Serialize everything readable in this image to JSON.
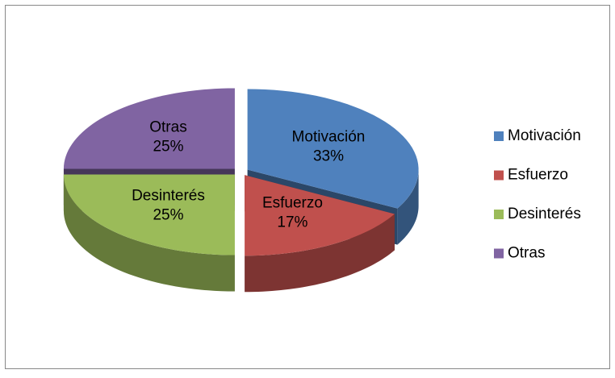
{
  "chart_data": {
    "type": "pie",
    "categories": [
      "Motivación",
      "Esfuerzo",
      "Desinterés",
      "Otras"
    ],
    "values": [
      33,
      17,
      25,
      25
    ],
    "value_labels": [
      "33%",
      "17%",
      "25%",
      "25%"
    ],
    "colors": [
      "#4f81bd",
      "#c0504d",
      "#9bbb59",
      "#8064a2"
    ],
    "legend": "right"
  }
}
